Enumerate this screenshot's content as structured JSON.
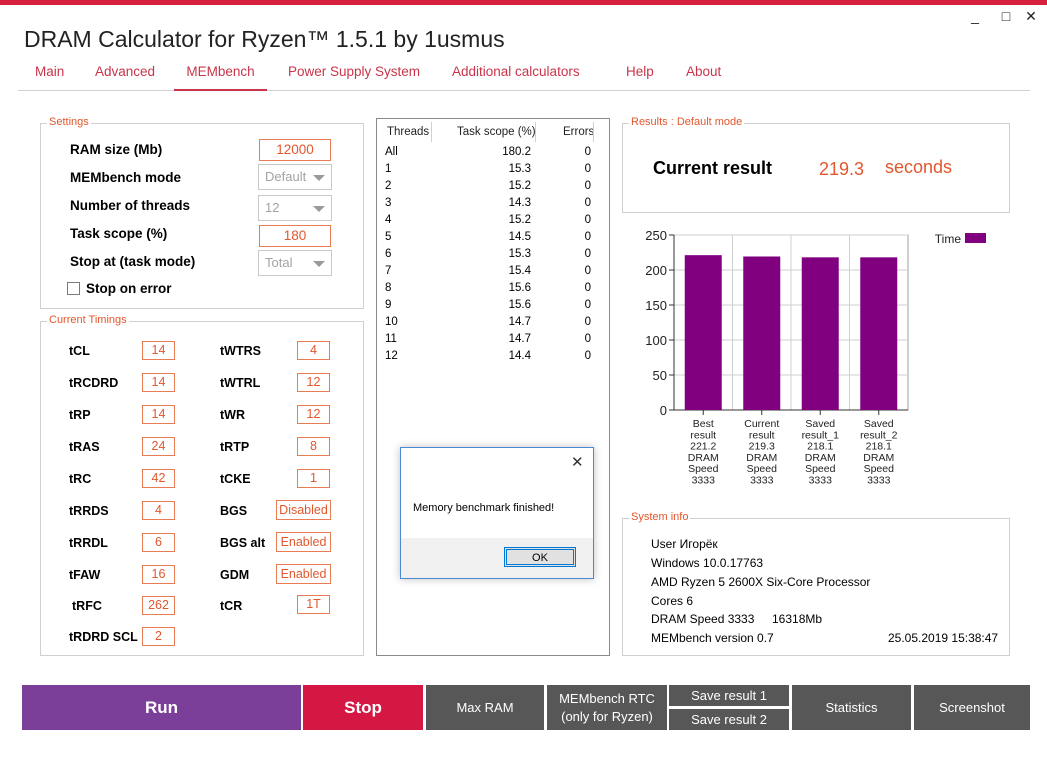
{
  "window": {
    "title": "DRAM Calculator for Ryzen™ 1.5.1 by 1usmus",
    "minimize": "_",
    "maximize": "□",
    "close": "✕"
  },
  "tabs": [
    {
      "label": "Main"
    },
    {
      "label": "Advanced"
    },
    {
      "label": "MEMbench",
      "active": true
    },
    {
      "label": "Power Supply System"
    },
    {
      "label": "Additional calculators"
    },
    {
      "label": "Help"
    },
    {
      "label": "About"
    }
  ],
  "settings": {
    "title": "Settings",
    "ram_size": {
      "label": "RAM size (Mb)",
      "value": "12000"
    },
    "mode": {
      "label": "MEMbench mode",
      "value": "Default"
    },
    "threads": {
      "label": "Number of threads",
      "value": "12"
    },
    "task_scope": {
      "label": "Task scope (%)",
      "value": "180"
    },
    "stop_at": {
      "label": "Stop at (task mode)",
      "value": "Total"
    },
    "stop_on_error": {
      "label": "Stop on error",
      "checked": false
    }
  },
  "timings": {
    "title": "Current Timings",
    "left": [
      {
        "label": "tCL",
        "value": "14"
      },
      {
        "label": "tRCDRD",
        "value": "14"
      },
      {
        "label": "tRP",
        "value": "14"
      },
      {
        "label": "tRAS",
        "value": "24"
      },
      {
        "label": "tRC",
        "value": "42"
      },
      {
        "label": "tRRDS",
        "value": "4"
      },
      {
        "label": "tRRDL",
        "value": "6"
      },
      {
        "label": "tFAW",
        "value": "16"
      },
      {
        "label": "tRFC",
        "value": "262"
      },
      {
        "label": "tRDRD SCL",
        "value": "2"
      }
    ],
    "right": [
      {
        "label": "tWTRS",
        "value": "4"
      },
      {
        "label": "tWTRL",
        "value": "12"
      },
      {
        "label": "tWR",
        "value": "12"
      },
      {
        "label": "tRTP",
        "value": "8"
      },
      {
        "label": "tCKE",
        "value": "1"
      },
      {
        "label": "BGS",
        "value": "Disabled"
      },
      {
        "label": "BGS alt",
        "value": "Enabled"
      },
      {
        "label": "GDM",
        "value": "Enabled"
      },
      {
        "label": "tCR",
        "value": "1T"
      }
    ]
  },
  "threads_table": {
    "headers": [
      "Threads",
      "Task scope (%)",
      "Errors"
    ],
    "rows": [
      [
        "All",
        "180.2",
        "0"
      ],
      [
        "1",
        "15.3",
        "0"
      ],
      [
        "2",
        "15.2",
        "0"
      ],
      [
        "3",
        "14.3",
        "0"
      ],
      [
        "4",
        "15.2",
        "0"
      ],
      [
        "5",
        "14.5",
        "0"
      ],
      [
        "6",
        "15.3",
        "0"
      ],
      [
        "7",
        "15.4",
        "0"
      ],
      [
        "8",
        "15.6",
        "0"
      ],
      [
        "9",
        "15.6",
        "0"
      ],
      [
        "10",
        "14.7",
        "0"
      ],
      [
        "11",
        "14.7",
        "0"
      ],
      [
        "12",
        "14.4",
        "0"
      ]
    ]
  },
  "results": {
    "title": "Results : Default mode",
    "label": "Current result",
    "value": "219.3",
    "unit": "seconds"
  },
  "chart_data": {
    "type": "bar",
    "categories": [
      [
        "Best",
        "result",
        "221.2",
        "DRAM",
        "Speed",
        "3333"
      ],
      [
        "Current",
        "result",
        "219.3",
        "DRAM",
        "Speed",
        "3333"
      ],
      [
        "Saved",
        "result_1",
        "218.1",
        "DRAM",
        "Speed",
        "3333"
      ],
      [
        "Saved",
        "result_2",
        "218.1",
        "DRAM",
        "Speed",
        "3333"
      ]
    ],
    "series": [
      {
        "name": "Time",
        "values": [
          221.2,
          219.3,
          218.1,
          218.1
        ],
        "color": "#800080"
      }
    ],
    "ylim": [
      0,
      250
    ],
    "yticks": [
      0,
      50,
      100,
      150,
      200,
      250
    ],
    "grid": true,
    "legend": "top-right"
  },
  "system_info": {
    "title": "System info",
    "user": "User Игорёк",
    "os": "Windows 10.0.17763",
    "cpu": "AMD Ryzen 5 2600X Six-Core Processor",
    "cores": "Cores 6",
    "dram_speed": "DRAM Speed 3333",
    "memory": "16318Mb",
    "version": "MEMbench version 0.7",
    "datetime": "25.05.2019 15:38:47"
  },
  "dialog": {
    "message": "Memory benchmark finished!",
    "ok": "OK",
    "close": "✕"
  },
  "buttons": {
    "run": "Run",
    "stop": "Stop",
    "max_ram": "Max RAM",
    "rtc_line1": "MEMbench RTC",
    "rtc_line2": "(only for Ryzen)",
    "save1": "Save result 1",
    "save2": "Save result 2",
    "statistics": "Statistics",
    "screenshot": "Screenshot"
  },
  "colors": {
    "accent": "#c8354a",
    "orange": "#e2572d",
    "run": "#7b3f9a",
    "stop": "#d51743",
    "gray_button": "#575757",
    "bar": "#800080"
  }
}
